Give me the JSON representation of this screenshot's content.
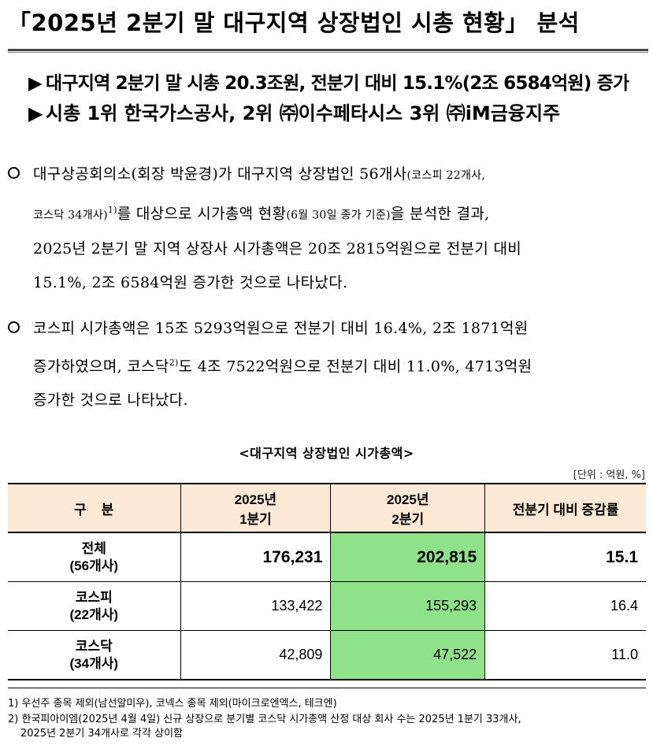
{
  "title": "「2025년 2분기 말 대구지역 상장법인 시총 현황」 분석",
  "highlights": [
    "대구지역 2분기 말 시총 20.3조원, 전분기 대비 15.1%(2조 6584억원) 증가",
    "시총 1위 한국가스공사, 2위 ㈜이수페타시스 3위 ㈜iM금융지주"
  ],
  "highlight_marker": "▶",
  "paragraph1": {
    "l1_a": "대구상공회의소(회장 박윤경)가 대구지역 상장법인 56개사",
    "l1_small": "(코스피 22개사,",
    "l2_small_a": "코스닥 34개사)",
    "l2_sup": "1)",
    "l2_b": "를 대상으로 시가총액 현황",
    "l2_small_b": "(6월 30일 종가 기준)",
    "l2_c": "을 분석한 결과,",
    "l3": "2025년 2분기 말 지역 상장사 시가총액은 20조 2815억원으로 전분기 대비",
    "l4": "15.1%, 2조 6584억원 증가한 것으로 나타났다."
  },
  "paragraph2": {
    "l1": "코스피 시가총액은 15조 5293억원으로 전분기 대비 16.4%, 2조 1871억원",
    "l2_a": "증가하였으며, 코스닥",
    "l2_sup": "2)",
    "l2_b": "도 4조 7522억원으로 전분기 대비 11.0%, 4713억원",
    "l3": "증가한 것으로 나타났다."
  },
  "table": {
    "title": "<대구지역 상장법인 시가총액>",
    "unit": "[단위 : 억원, %]",
    "headers": {
      "category": "구    분",
      "q1_year": "2025년",
      "q1_label": "1분기",
      "q2_year": "2025년",
      "q2_label": "2분기",
      "change": "전분기 대비 증감률"
    },
    "rows": [
      {
        "name": "전체",
        "count": "(56개사)",
        "q1": "176,231",
        "q2": "202,815",
        "change": "15.1"
      },
      {
        "name": "코스피",
        "count": "(22개사)",
        "q1": "133,422",
        "q2": "155,293",
        "change": "16.4"
      },
      {
        "name": "코스닥",
        "count": "(34개사)",
        "q1": "42,809",
        "q2": "47,522",
        "change": "11.0"
      }
    ]
  },
  "footnotes": {
    "f1": "1) 우선주 종목 제외(남선알미우), 코넥스 종목 제외(마이크로엔엑스, 테크엔)",
    "f2": "2) 한국피아이엠(2025년 4월 4일) 신규 상장으로 분기별 코스닥 시가총액 산정 대상 회사 수는 2025년 1분기 33개사,",
    "f3": "2025년 2분기 34개사로 각각 상이함"
  },
  "colors": {
    "header_bg": "#fde9d4",
    "q2_highlight": "#8fe18a"
  }
}
